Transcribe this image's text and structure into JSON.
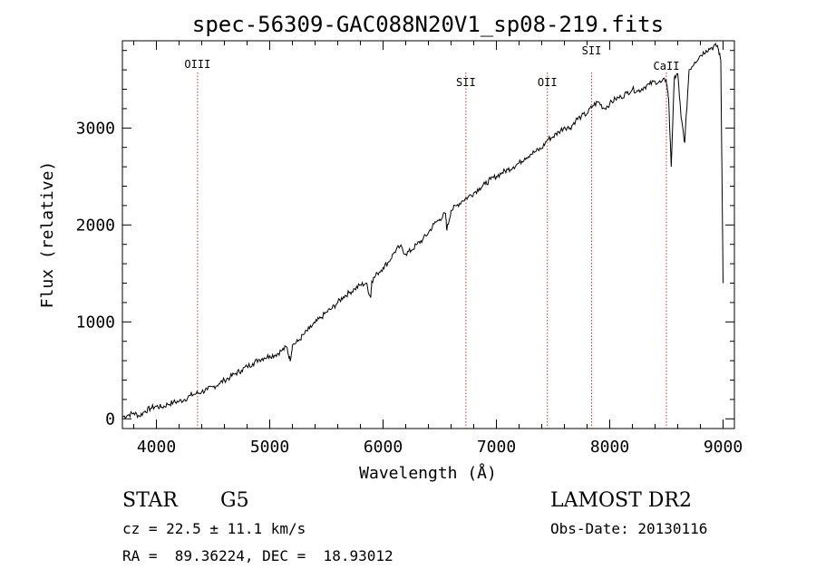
{
  "chart_data": {
    "type": "line",
    "title": "spec-56309-GAC088N20V1_sp08-219.fits",
    "xlabel": "Wavelength (Å)",
    "ylabel": "Flux (relative)",
    "xlim": [
      3700,
      9100
    ],
    "ylim": [
      -100,
      3900
    ],
    "x_ticks": [
      4000,
      5000,
      6000,
      7000,
      8000,
      9000
    ],
    "y_ticks": [
      0,
      1000,
      2000,
      3000
    ],
    "grid": false,
    "line_color": "#000000",
    "marker_color": "#c0392b",
    "series": [
      {
        "x": [
          3700,
          3750,
          3800,
          3850,
          3900,
          3950,
          4000,
          4050,
          4100,
          4150,
          4200,
          4250,
          4300,
          4350,
          4400,
          4450,
          4500,
          4550,
          4600,
          4650,
          4700,
          4750,
          4800,
          4850,
          4900,
          4950,
          5000,
          5050,
          5100,
          5150,
          5180,
          5200,
          5250,
          5300,
          5350,
          5400,
          5450,
          5500,
          5550,
          5600,
          5650,
          5700,
          5750,
          5800,
          5850,
          5890,
          5900,
          5950,
          6000,
          6050,
          6100,
          6150,
          6200,
          6250,
          6300,
          6350,
          6400,
          6450,
          6500,
          6550,
          6563,
          6600,
          6650,
          6700,
          6750,
          6800,
          6850,
          6900,
          6950,
          7000,
          7050,
          7100,
          7150,
          7200,
          7250,
          7300,
          7350,
          7400,
          7450,
          7500,
          7550,
          7600,
          7650,
          7700,
          7750,
          7800,
          7850,
          7900,
          7950,
          8000,
          8050,
          8100,
          8150,
          8200,
          8250,
          8300,
          8350,
          8400,
          8450,
          8498,
          8520,
          8542,
          8570,
          8600,
          8630,
          8662,
          8700,
          8750,
          8800,
          8850,
          8900,
          8950,
          8980,
          9000
        ],
        "y": [
          20,
          40,
          60,
          30,
          80,
          110,
          130,
          120,
          150,
          170,
          180,
          200,
          240,
          260,
          280,
          300,
          330,
          360,
          400,
          430,
          470,
          500,
          540,
          570,
          610,
          630,
          650,
          660,
          700,
          740,
          600,
          760,
          800,
          870,
          930,
          990,
          1040,
          1100,
          1140,
          1200,
          1260,
          1300,
          1340,
          1380,
          1400,
          1250,
          1420,
          1500,
          1560,
          1620,
          1720,
          1780,
          1700,
          1740,
          1800,
          1850,
          1920,
          2010,
          2060,
          2120,
          1950,
          2150,
          2200,
          2250,
          2290,
          2330,
          2380,
          2420,
          2470,
          2500,
          2540,
          2570,
          2600,
          2640,
          2690,
          2730,
          2760,
          2790,
          2880,
          2910,
          2960,
          3010,
          3000,
          3080,
          3120,
          3150,
          3230,
          3270,
          3200,
          3250,
          3300,
          3320,
          3360,
          3400,
          3380,
          3420,
          3450,
          3480,
          3470,
          3500,
          3300,
          2600,
          3520,
          3560,
          3100,
          2850,
          3600,
          3680,
          3750,
          3800,
          3830,
          3850,
          3700,
          1400
        ]
      }
    ],
    "line_markers": [
      {
        "label": "OIII",
        "x": 4363
      },
      {
        "label": "SII",
        "x": 6731
      },
      {
        "label": "OII",
        "x": 7450
      },
      {
        "label": "SII",
        "x": 7840
      },
      {
        "label": "CaII",
        "x": 8500
      }
    ]
  },
  "info": {
    "object_class": "STAR",
    "subclass": "G5",
    "survey": "LAMOST DR2",
    "redshift_line": "cz = 22.5 ± 11.1 km/s",
    "obs_date_line": "Obs-Date: 20130116",
    "coords_line": "RA =  89.36224, DEC =  18.93012"
  }
}
